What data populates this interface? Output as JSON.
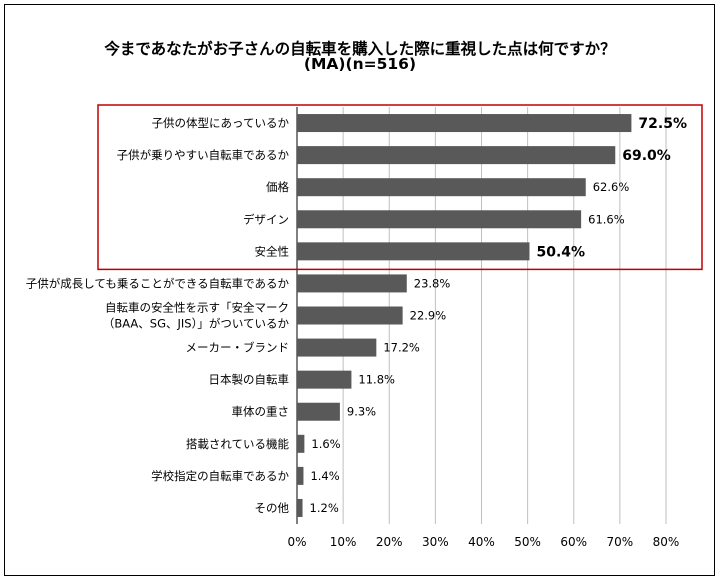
{
  "chart_data": {
    "type": "bar",
    "orientation": "horizontal",
    "title_line1": "今まであなたがお子さんの自転車を購入した際に重視した点は何ですか？",
    "title_line2": "(MA)(n=516)",
    "categories": [
      "子供の体型にあっているか",
      "子供が乗りやすい自転車であるか",
      "価格",
      "デザイン",
      "安全性",
      "子供が成長しても乗ることができる自転車であるか",
      [
        "自転車の安全性を示す「安全マーク",
        "（BAA、SG、JIS）」がついているか"
      ],
      "メーカー・ブランド",
      "日本製の自転車",
      "車体の重さ",
      "搭載されている機能",
      "学校指定の自転車であるか",
      "その他"
    ],
    "values": [
      72.5,
      69.0,
      62.6,
      61.6,
      50.4,
      23.8,
      22.9,
      17.2,
      11.8,
      9.3,
      1.6,
      1.4,
      1.2
    ],
    "value_labels": [
      "72.5%",
      "69.0%",
      "62.6%",
      "61.6%",
      "50.4%",
      "23.8%",
      "22.9%",
      "17.2%",
      "11.8%",
      "9.3%",
      "1.6%",
      "1.4%",
      "1.2%"
    ],
    "emphasized_labels": [
      0,
      1,
      4
    ],
    "highlighted_categories": [
      0,
      1,
      2,
      3,
      4
    ],
    "xlim": [
      0,
      80
    ],
    "x_ticks": [
      "0%",
      "10%",
      "20%",
      "30%",
      "40%",
      "50%",
      "60%",
      "70%",
      "80%"
    ],
    "grid": true,
    "colors": {
      "bar": "#595959",
      "grid": "#bfbfbf",
      "highlight_box": "#c00000"
    }
  }
}
